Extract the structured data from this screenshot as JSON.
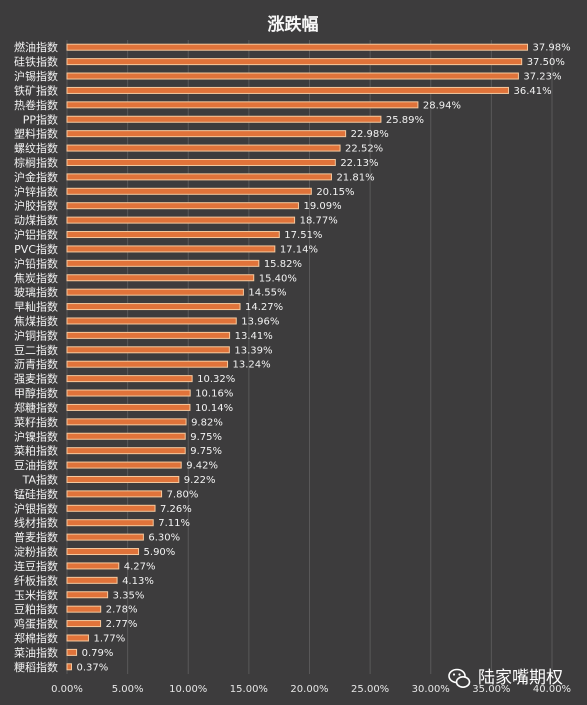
{
  "chart_data": {
    "type": "bar",
    "orientation": "horizontal",
    "title": "涨跌幅",
    "categories": [
      "燃油指数",
      "硅铁指数",
      "沪锡指数",
      "铁矿指数",
      "热卷指数",
      "PP指数",
      "塑料指数",
      "螺纹指数",
      "棕榈指数",
      "沪金指数",
      "沪锌指数",
      "沪胶指数",
      "动煤指数",
      "沪铝指数",
      "PVC指数",
      "沪铅指数",
      "焦炭指数",
      "玻璃指数",
      "早籼指数",
      "焦煤指数",
      "沪铜指数",
      "豆二指数",
      "沥青指数",
      "强麦指数",
      "甲醇指数",
      "郑糖指数",
      "菜籽指数",
      "沪镍指数",
      "菜粕指数",
      "豆油指数",
      "TA指数",
      "锰硅指数",
      "沪银指数",
      "线材指数",
      "普麦指数",
      "淀粉指数",
      "连豆指数",
      "纤板指数",
      "玉米指数",
      "豆粕指数",
      "鸡蛋指数",
      "郑棉指数",
      "菜油指数",
      "粳稻指数"
    ],
    "values": [
      37.98,
      37.5,
      37.23,
      36.41,
      28.94,
      25.89,
      22.98,
      22.52,
      22.13,
      21.81,
      20.15,
      19.09,
      18.77,
      17.51,
      17.14,
      15.82,
      15.4,
      14.55,
      14.27,
      13.96,
      13.41,
      13.39,
      13.24,
      10.32,
      10.16,
      10.14,
      9.82,
      9.75,
      9.75,
      9.42,
      9.22,
      7.8,
      7.26,
      7.11,
      6.3,
      5.9,
      4.27,
      4.13,
      3.35,
      2.78,
      2.77,
      1.77,
      0.79,
      0.37
    ],
    "data_labels": [
      "37.98%",
      "37.50%",
      "37.23%",
      "36.41%",
      "28.94%",
      "25.89%",
      "22.98%",
      "22.52%",
      "22.13%",
      "21.81%",
      "20.15%",
      "19.09%",
      "18.77%",
      "17.51%",
      "17.14%",
      "15.82%",
      "15.40%",
      "14.55%",
      "14.27%",
      "13.96%",
      "13.41%",
      "13.39%",
      "13.24%",
      "10.32%",
      "10.16%",
      "10.14%",
      "9.82%",
      "9.75%",
      "9.75%",
      "9.42%",
      "9.22%",
      "7.80%",
      "7.26%",
      "7.11%",
      "6.30%",
      "5.90%",
      "4.27%",
      "4.13%",
      "3.35%",
      "2.78%",
      "2.77%",
      "1.77%",
      "0.79%",
      "0.37%"
    ],
    "xlim": [
      0,
      40
    ],
    "x_ticks": [
      0,
      5,
      10,
      15,
      20,
      25,
      30,
      35,
      40
    ],
    "x_tick_labels": [
      "0.00%",
      "5.00%",
      "10.00%",
      "15.00%",
      "20.00%",
      "25.00%",
      "30.00%",
      "35.00%",
      "40.00%"
    ],
    "grid": "vertical",
    "colors": {
      "background": "#3d3c3d",
      "bar_fill": "#e0733a",
      "bar_stroke": "#f6c99e",
      "grid": "#595859",
      "text": "#f2f2f2",
      "axis_text": "#e6e6e6",
      "title": "#f7f7f7"
    }
  },
  "watermark": {
    "text": "陆家嘴期权",
    "icon": "wechat-icon"
  }
}
